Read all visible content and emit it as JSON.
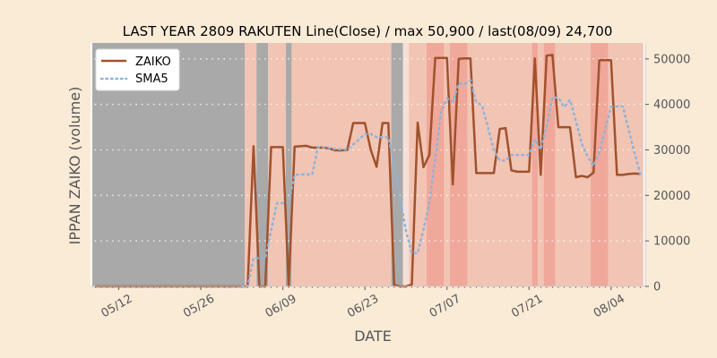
{
  "chart_data": {
    "type": "line",
    "title": "LAST YEAR 2809 RAKUTEN Line(Close) / max 50,900 / last(08/09) 24,700",
    "xlabel": "DATE",
    "ylabel": "IPPAN ZAIKO (volume)",
    "ylim": [
      0,
      53500
    ],
    "yticks": [
      0,
      10000,
      20000,
      30000,
      40000,
      50000
    ],
    "xtick_labels": [
      "05/12",
      "05/26",
      "06/09",
      "06/23",
      "07/07",
      "07/21",
      "08/04"
    ],
    "xtick_days": [
      4,
      18,
      32,
      46,
      60,
      74,
      88
    ],
    "x_start_date": "05/08",
    "grid": true,
    "legend_position": "top-left",
    "series": [
      {
        "name": "ZAIKO",
        "color": "#a0522d",
        "style": "solid",
        "points": [
          [
            0,
            0
          ],
          [
            1,
            0
          ],
          [
            2,
            0
          ],
          [
            3,
            0
          ],
          [
            4,
            0
          ],
          [
            5,
            0
          ],
          [
            6,
            0
          ],
          [
            7,
            0
          ],
          [
            8,
            0
          ],
          [
            9,
            0
          ],
          [
            10,
            0
          ],
          [
            11,
            0
          ],
          [
            12,
            0
          ],
          [
            13,
            0
          ],
          [
            14,
            0
          ],
          [
            15,
            0
          ],
          [
            16,
            0
          ],
          [
            17,
            0
          ],
          [
            18,
            0
          ],
          [
            19,
            0
          ],
          [
            20,
            0
          ],
          [
            21,
            0
          ],
          [
            22,
            0
          ],
          [
            23,
            0
          ],
          [
            24,
            0
          ],
          [
            25,
            0
          ],
          [
            26,
            0
          ],
          [
            27,
            30800
          ],
          [
            28,
            0
          ],
          [
            29,
            0
          ],
          [
            30,
            30600
          ],
          [
            31,
            30600
          ],
          [
            32,
            30600
          ],
          [
            33,
            0
          ],
          [
            34,
            30700
          ],
          [
            35,
            30800
          ],
          [
            36,
            30900
          ],
          [
            37,
            30500
          ],
          [
            38,
            30500
          ],
          [
            39,
            30500
          ],
          [
            40,
            30300
          ],
          [
            41,
            29900
          ],
          [
            42,
            29900
          ],
          [
            43,
            30000
          ],
          [
            44,
            35900
          ],
          [
            45,
            35900
          ],
          [
            46,
            35900
          ],
          [
            47,
            30000
          ],
          [
            48,
            26300
          ],
          [
            49,
            35900
          ],
          [
            50,
            35900
          ],
          [
            51,
            300
          ],
          [
            52,
            0
          ],
          [
            53,
            0
          ],
          [
            54,
            400
          ],
          [
            55,
            36000
          ],
          [
            56,
            26200
          ],
          [
            57,
            28900
          ],
          [
            58,
            50200
          ],
          [
            59,
            50200
          ],
          [
            60,
            50200
          ],
          [
            61,
            22400
          ],
          [
            62,
            50000
          ],
          [
            63,
            50100
          ],
          [
            64,
            50100
          ],
          [
            65,
            24900
          ],
          [
            66,
            24900
          ],
          [
            67,
            24900
          ],
          [
            68,
            24900
          ],
          [
            69,
            34600
          ],
          [
            70,
            34800
          ],
          [
            71,
            25500
          ],
          [
            72,
            25200
          ],
          [
            73,
            25200
          ],
          [
            74,
            25200
          ],
          [
            75,
            50100
          ],
          [
            76,
            24500
          ],
          [
            77,
            50700
          ],
          [
            78,
            50900
          ],
          [
            79,
            35000
          ],
          [
            80,
            35000
          ],
          [
            81,
            35000
          ],
          [
            82,
            24000
          ],
          [
            83,
            24300
          ],
          [
            84,
            24000
          ],
          [
            85,
            25000
          ],
          [
            86,
            49700
          ],
          [
            87,
            49700
          ],
          [
            88,
            49700
          ],
          [
            89,
            24500
          ],
          [
            90,
            24500
          ],
          [
            91,
            24700
          ],
          [
            92,
            24800
          ],
          [
            93,
            24700
          ]
        ]
      },
      {
        "name": "SMA5",
        "color": "#8fb3d9",
        "style": "dotted",
        "points": [
          [
            25,
            0
          ],
          [
            26,
            0
          ],
          [
            27,
            6200
          ],
          [
            28,
            6200
          ],
          [
            29,
            6200
          ],
          [
            30,
            12300
          ],
          [
            31,
            18300
          ],
          [
            32,
            18300
          ],
          [
            33,
            18400
          ],
          [
            34,
            24500
          ],
          [
            35,
            24600
          ],
          [
            36,
            24600
          ],
          [
            37,
            24600
          ],
          [
            38,
            30600
          ],
          [
            39,
            30600
          ],
          [
            40,
            30400
          ],
          [
            41,
            30200
          ],
          [
            42,
            30100
          ],
          [
            43,
            30100
          ],
          [
            44,
            31200
          ],
          [
            45,
            32300
          ],
          [
            46,
            33500
          ],
          [
            47,
            33500
          ],
          [
            48,
            32800
          ],
          [
            49,
            32800
          ],
          [
            50,
            32800
          ],
          [
            51,
            26500
          ],
          [
            52,
            19300
          ],
          [
            53,
            12300
          ],
          [
            54,
            7300
          ],
          [
            55,
            7300
          ],
          [
            56,
            12500
          ],
          [
            57,
            18300
          ],
          [
            58,
            28300
          ],
          [
            59,
            38300
          ],
          [
            60,
            41300
          ],
          [
            61,
            40600
          ],
          [
            62,
            44600
          ],
          [
            63,
            44500
          ],
          [
            64,
            45300
          ],
          [
            65,
            40500
          ],
          [
            66,
            39800
          ],
          [
            67,
            34900
          ],
          [
            68,
            29900
          ],
          [
            69,
            27700
          ],
          [
            70,
            27700
          ],
          [
            71,
            28900
          ],
          [
            72,
            28900
          ],
          [
            73,
            28900
          ],
          [
            74,
            28900
          ],
          [
            75,
            32300
          ],
          [
            76,
            30100
          ],
          [
            77,
            35200
          ],
          [
            78,
            41500
          ],
          [
            79,
            41500
          ],
          [
            80,
            39400
          ],
          [
            81,
            41000
          ],
          [
            82,
            36300
          ],
          [
            83,
            31400
          ],
          [
            84,
            28500
          ],
          [
            85,
            26500
          ],
          [
            86,
            29500
          ],
          [
            87,
            34500
          ],
          [
            88,
            39500
          ],
          [
            89,
            39600
          ],
          [
            90,
            39600
          ],
          [
            91,
            34500
          ],
          [
            92,
            29300
          ],
          [
            93,
            24600
          ]
        ]
      }
    ],
    "background_bands": [
      {
        "from": 0,
        "to": 26,
        "color": "#a9a9a9"
      },
      {
        "from": 26,
        "to": 28,
        "color": "#f2c4b4"
      },
      {
        "from": 28,
        "to": 30,
        "color": "#a9a9a9"
      },
      {
        "from": 30,
        "to": 33,
        "color": "#f2c4b4"
      },
      {
        "from": 33,
        "to": 34,
        "color": "#a9a9a9"
      },
      {
        "from": 34,
        "to": 51,
        "color": "#f2c4b4"
      },
      {
        "from": 51,
        "to": 53,
        "color": "#a9a9a9"
      },
      {
        "from": 53,
        "to": 54,
        "color": "#f5dfd8"
      },
      {
        "from": 54,
        "to": 57,
        "color": "#f2c4b4"
      },
      {
        "from": 57,
        "to": 60,
        "color": "#f0a89a"
      },
      {
        "from": 60,
        "to": 61,
        "color": "#f2c4b4"
      },
      {
        "from": 61,
        "to": 64,
        "color": "#f0a89a"
      },
      {
        "from": 64,
        "to": 75,
        "color": "#f2c4b4"
      },
      {
        "from": 75,
        "to": 76,
        "color": "#f0a89a"
      },
      {
        "from": 76,
        "to": 77,
        "color": "#f2c4b4"
      },
      {
        "from": 77,
        "to": 79,
        "color": "#f0a89a"
      },
      {
        "from": 79,
        "to": 85,
        "color": "#f2c4b4"
      },
      {
        "from": 85,
        "to": 88,
        "color": "#f0a89a"
      },
      {
        "from": 88,
        "to": 94,
        "color": "#f2c4b4"
      }
    ]
  }
}
